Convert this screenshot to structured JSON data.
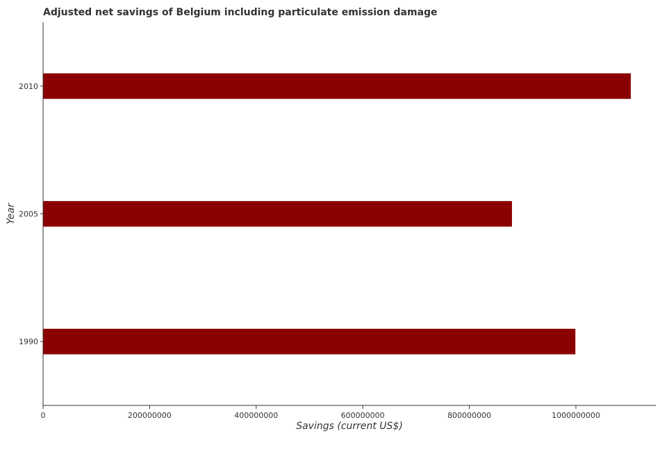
{
  "chart_data": {
    "type": "bar",
    "orientation": "horizontal",
    "title": "Adjusted net savings of Belgium including particulate emission damage",
    "xlabel": "Savings (current US$)",
    "ylabel": "Year",
    "categories": [
      "1990",
      "2005",
      "2010"
    ],
    "values": [
      999000000,
      880000000,
      1103000000
    ],
    "xlim": [
      0,
      1150000000
    ],
    "x_ticks": [
      0,
      200000000,
      400000000,
      600000000,
      800000000,
      1000000000
    ],
    "x_tick_labels": [
      "0",
      "200000000",
      "400000000",
      "600000000",
      "800000000",
      "1000000000"
    ],
    "bar_color": "#8b0000",
    "grid": false,
    "legend": "none"
  }
}
